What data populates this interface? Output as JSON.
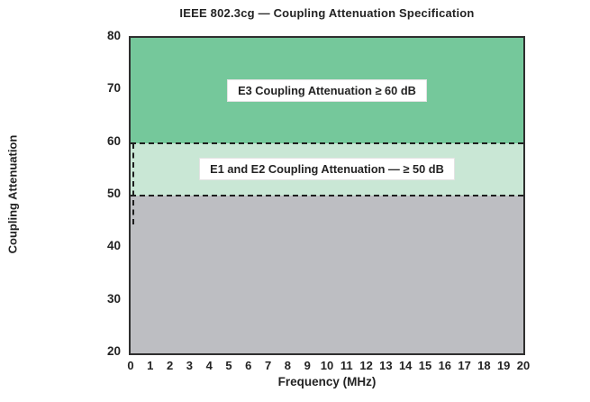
{
  "chart_data": {
    "type": "area",
    "title": "IEEE 802.3cg — Coupling Attenuation Specification",
    "xlabel": "Frequency (MHz)",
    "ylabel": "Coupling Attenuation",
    "xlim": [
      0,
      20
    ],
    "ylim": [
      20,
      80
    ],
    "x_ticks": [
      0,
      1,
      2,
      3,
      4,
      5,
      6,
      7,
      8,
      9,
      10,
      11,
      12,
      13,
      14,
      15,
      16,
      17,
      18,
      19,
      20
    ],
    "y_ticks": [
      20,
      30,
      40,
      50,
      60,
      70,
      80
    ],
    "grid": false,
    "legend": "none",
    "regions": [
      {
        "name": "e3-region",
        "label": "E3 Coupling Attenuation ≥ 60 dB",
        "y_from": 60,
        "y_to": 80,
        "color": "#75c89b"
      },
      {
        "name": "e1-e2-region",
        "label": "E1 and E2 Coupling Attenuation — ≥ 50 dB",
        "y_from": 50,
        "y_to": 60,
        "color": "#c9e7d5"
      },
      {
        "name": "below-spec-region",
        "label": "",
        "y_from": 20,
        "y_to": 50,
        "color": "#bdbec2"
      }
    ],
    "threshold_lines": [
      {
        "y": 60,
        "style": "dashed",
        "color": "#1e1e1e"
      },
      {
        "y": 50,
        "style": "dashed",
        "color": "#1e1e1e"
      }
    ],
    "low_frequency_boundary": {
      "x": 0.1,
      "y_from": 60,
      "y_to": 44.5,
      "style": "dashed",
      "color": "#1e1e1e"
    }
  },
  "colors": {
    "plot_border": "#2f2f2f",
    "text": "#232323",
    "label_box_bg": "#ffffff",
    "label_box_border": "#e3e3e3",
    "background": "#ffffff"
  }
}
